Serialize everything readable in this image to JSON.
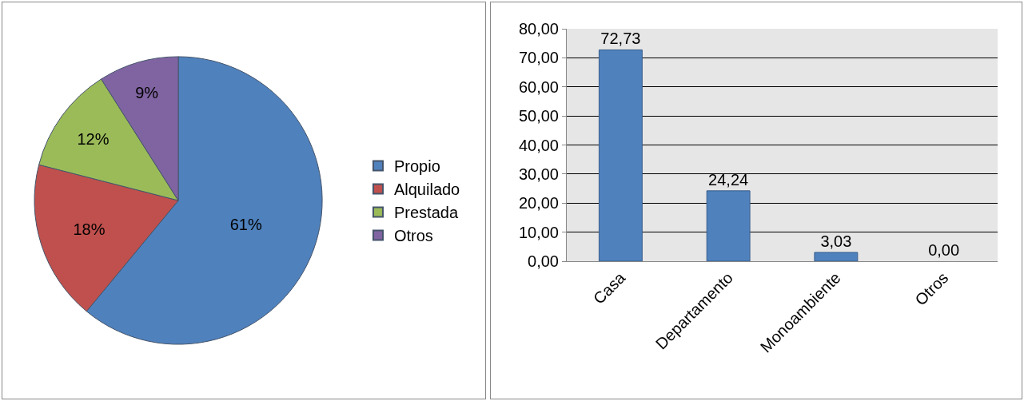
{
  "chart_data": [
    {
      "type": "pie",
      "categories": [
        "Propio",
        "Alquilado",
        "Prestada",
        "Otros"
      ],
      "values": [
        61,
        18,
        12,
        9
      ],
      "colors": [
        "#4f81bd",
        "#c0504d",
        "#9bbb59",
        "#8064a2"
      ],
      "value_labels": [
        "61%",
        "18%",
        "12%",
        "9%"
      ],
      "legend": "right"
    },
    {
      "type": "bar",
      "categories": [
        "Casa",
        "Departamento",
        "Monoambiente",
        "Otros"
      ],
      "values": [
        72.73,
        24.24,
        3.03,
        0
      ],
      "color": "#4f81bd",
      "value_labels": [
        "72,73",
        "24,24",
        "3,03",
        "0,00"
      ],
      "ylim": [
        0,
        80
      ],
      "yticks": [
        {
          "value": 0,
          "label": "0,00"
        },
        {
          "value": 10,
          "label": "10,00"
        },
        {
          "value": 20,
          "label": "20,00"
        },
        {
          "value": 30,
          "label": "30,00"
        },
        {
          "value": 40,
          "label": "40,00"
        },
        {
          "value": 50,
          "label": "50,00"
        },
        {
          "value": 60,
          "label": "60,00"
        },
        {
          "value": 70,
          "label": "70,00"
        },
        {
          "value": 80,
          "label": "80,00"
        }
      ],
      "grid": "y",
      "legend": false
    }
  ]
}
